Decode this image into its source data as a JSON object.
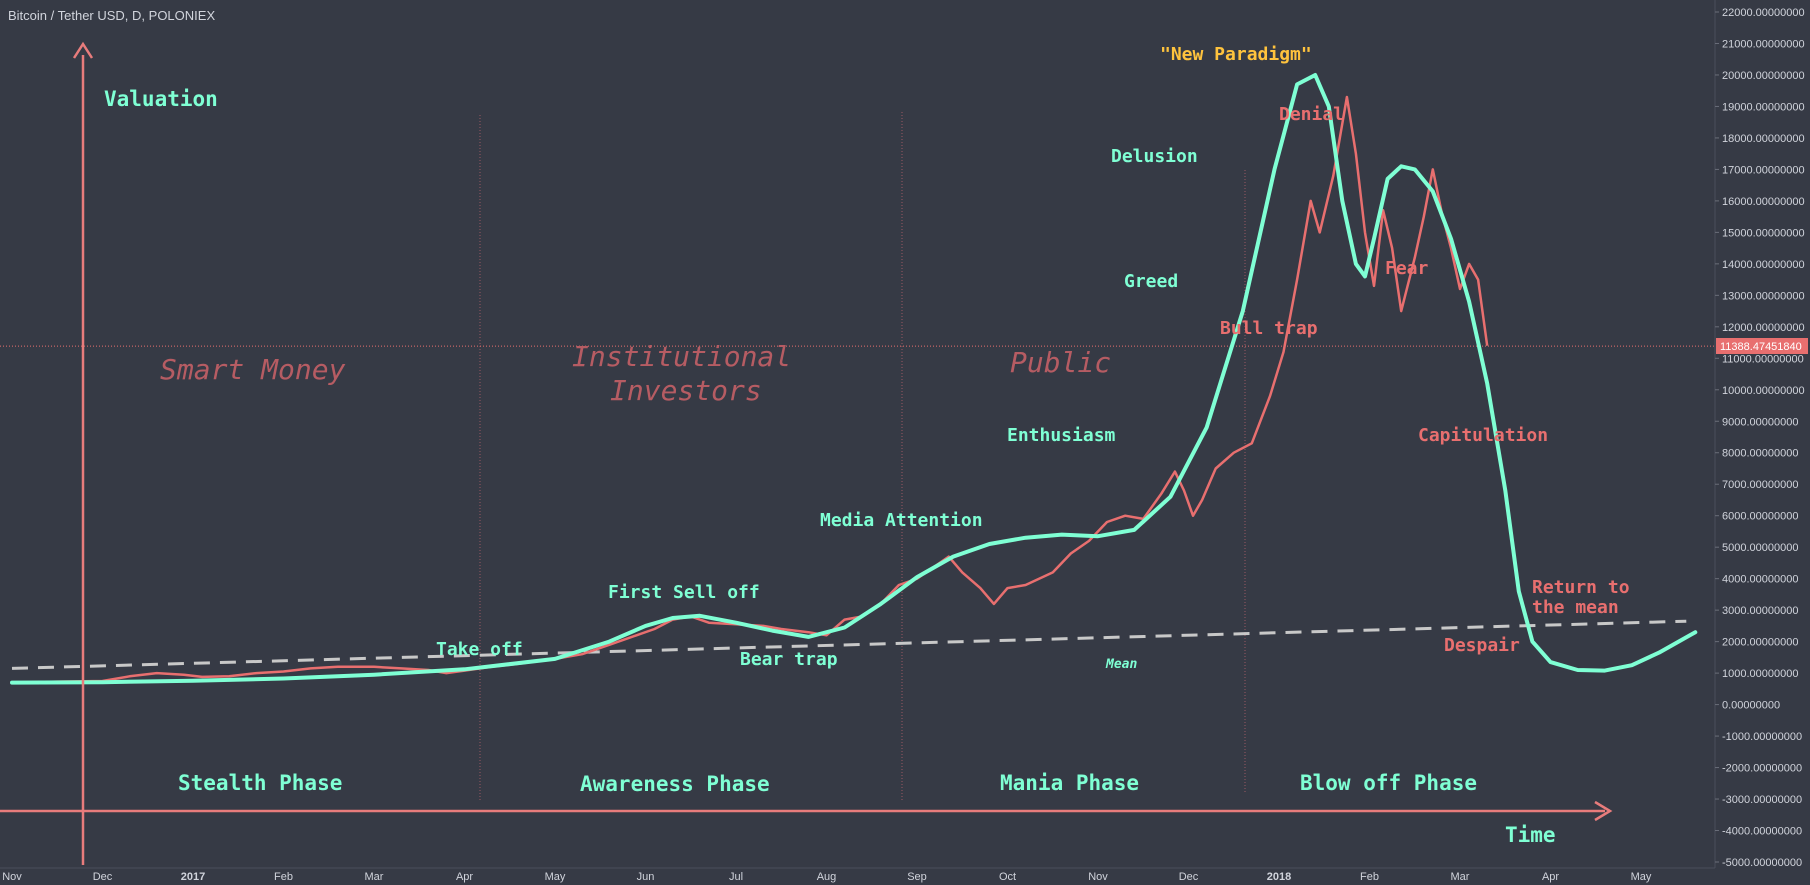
{
  "symbol_label": "Bitcoin / Tether USD, D, POLONIEX",
  "last_price": "11388.47451840",
  "colors": {
    "background": "#363a45",
    "price_line": "#e86f6f",
    "trend_curve": "#7fffd4",
    "mean_line": "#c8c8c8",
    "axis_arrows": "#e87c7c",
    "paradigm_label": "#ffc33d"
  },
  "chart_data": {
    "type": "line",
    "xlabel": "Time",
    "ylabel": "Valuation",
    "ylim": [
      -5000,
      22000
    ],
    "y_ticks": [
      "22000.00000000",
      "21000.00000000",
      "20000.00000000",
      "19000.00000000",
      "18000.00000000",
      "17000.00000000",
      "16000.00000000",
      "15000.00000000",
      "14000.00000000",
      "13000.00000000",
      "12000.00000000",
      "11000.00000000",
      "10000.00000000",
      "9000.00000000",
      "8000.00000000",
      "7000.00000000",
      "6000.00000000",
      "5000.00000000",
      "4000.00000000",
      "3000.00000000",
      "2000.00000000",
      "1000.00000000",
      "0.00000000",
      "-1000.00000000",
      "-2000.00000000",
      "-3000.00000000",
      "-4000.00000000",
      "-5000.00000000"
    ],
    "x_ticks": [
      {
        "label": "Nov",
        "month": 0
      },
      {
        "label": "Dec",
        "month": 1
      },
      {
        "label": "2017",
        "month": 2,
        "bold": true
      },
      {
        "label": "Feb",
        "month": 3
      },
      {
        "label": "Mar",
        "month": 4
      },
      {
        "label": "Apr",
        "month": 5
      },
      {
        "label": "May",
        "month": 6
      },
      {
        "label": "Jun",
        "month": 7
      },
      {
        "label": "Jul",
        "month": 8
      },
      {
        "label": "Aug",
        "month": 9
      },
      {
        "label": "Sep",
        "month": 10
      },
      {
        "label": "Oct",
        "month": 11
      },
      {
        "label": "Nov",
        "month": 12
      },
      {
        "label": "Dec",
        "month": 13
      },
      {
        "label": "2018",
        "month": 14,
        "bold": true
      },
      {
        "label": "Feb",
        "month": 15
      },
      {
        "label": "Mar",
        "month": 16
      },
      {
        "label": "Apr",
        "month": 17
      },
      {
        "label": "May",
        "month": 18
      }
    ],
    "series": [
      {
        "key": "price",
        "values": [
          [
            0,
            700
          ],
          [
            0.5,
            730
          ],
          [
            1,
            750
          ],
          [
            1.3,
            900
          ],
          [
            1.6,
            1000
          ],
          [
            1.9,
            950
          ],
          [
            2.1,
            880
          ],
          [
            2.4,
            900
          ],
          [
            2.7,
            1000
          ],
          [
            3,
            1050
          ],
          [
            3.3,
            1150
          ],
          [
            3.6,
            1200
          ],
          [
            4,
            1200
          ],
          [
            4.3,
            1150
          ],
          [
            4.6,
            1100
          ],
          [
            4.8,
            1000
          ],
          [
            5,
            1080
          ],
          [
            5.3,
            1200
          ],
          [
            5.6,
            1300
          ],
          [
            6,
            1450
          ],
          [
            6.3,
            1600
          ],
          [
            6.6,
            1900
          ],
          [
            6.9,
            2200
          ],
          [
            7.1,
            2400
          ],
          [
            7.3,
            2700
          ],
          [
            7.5,
            2800
          ],
          [
            7.7,
            2600
          ],
          [
            8,
            2550
          ],
          [
            8.3,
            2500
          ],
          [
            8.5,
            2400
          ],
          [
            8.8,
            2300
          ],
          [
            9,
            2200
          ],
          [
            9.2,
            2700
          ],
          [
            9.4,
            2800
          ],
          [
            9.6,
            3200
          ],
          [
            9.8,
            3800
          ],
          [
            10,
            4000
          ],
          [
            10.2,
            4400
          ],
          [
            10.35,
            4700
          ],
          [
            10.5,
            4200
          ],
          [
            10.7,
            3700
          ],
          [
            10.85,
            3200
          ],
          [
            11,
            3700
          ],
          [
            11.2,
            3800
          ],
          [
            11.5,
            4200
          ],
          [
            11.7,
            4800
          ],
          [
            11.9,
            5200
          ],
          [
            12.1,
            5800
          ],
          [
            12.3,
            6000
          ],
          [
            12.5,
            5900
          ],
          [
            12.7,
            6700
          ],
          [
            12.85,
            7400
          ],
          [
            12.95,
            6800
          ],
          [
            13.05,
            6000
          ],
          [
            13.15,
            6500
          ],
          [
            13.3,
            7500
          ],
          [
            13.5,
            8000
          ],
          [
            13.7,
            8300
          ],
          [
            13.9,
            9800
          ],
          [
            14.05,
            11200
          ],
          [
            14.2,
            13500
          ],
          [
            14.35,
            16000
          ],
          [
            14.45,
            15000
          ],
          [
            14.6,
            16800
          ],
          [
            14.75,
            19300
          ],
          [
            14.85,
            17500
          ],
          [
            14.95,
            15000
          ],
          [
            15.05,
            13300
          ],
          [
            15.15,
            15700
          ],
          [
            15.25,
            14500
          ],
          [
            15.35,
            12500
          ],
          [
            15.5,
            14200
          ],
          [
            15.6,
            15500
          ],
          [
            15.7,
            17000
          ],
          [
            15.8,
            15600
          ],
          [
            15.9,
            14500
          ],
          [
            16,
            13200
          ],
          [
            16.1,
            14000
          ],
          [
            16.2,
            13500
          ],
          [
            16.3,
            11400
          ]
        ]
      },
      {
        "key": "trend",
        "values": [
          [
            0,
            700
          ],
          [
            1,
            710
          ],
          [
            2,
            760
          ],
          [
            3,
            830
          ],
          [
            4,
            950
          ],
          [
            5,
            1120
          ],
          [
            6,
            1450
          ],
          [
            6.6,
            2000
          ],
          [
            7,
            2500
          ],
          [
            7.3,
            2750
          ],
          [
            7.6,
            2820
          ],
          [
            8,
            2600
          ],
          [
            8.4,
            2350
          ],
          [
            8.8,
            2150
          ],
          [
            9.2,
            2450
          ],
          [
            9.6,
            3200
          ],
          [
            10,
            4050
          ],
          [
            10.4,
            4700
          ],
          [
            10.8,
            5100
          ],
          [
            11.2,
            5300
          ],
          [
            11.6,
            5400
          ],
          [
            12,
            5350
          ],
          [
            12.4,
            5550
          ],
          [
            12.8,
            6600
          ],
          [
            13.2,
            8800
          ],
          [
            13.6,
            12500
          ],
          [
            13.95,
            17000
          ],
          [
            14.2,
            19700
          ],
          [
            14.4,
            20000
          ],
          [
            14.55,
            19000
          ],
          [
            14.7,
            16000
          ],
          [
            14.85,
            14000
          ],
          [
            14.95,
            13600
          ],
          [
            15.05,
            14800
          ],
          [
            15.2,
            16700
          ],
          [
            15.35,
            17100
          ],
          [
            15.5,
            17000
          ],
          [
            15.7,
            16300
          ],
          [
            15.9,
            14800
          ],
          [
            16.1,
            12800
          ],
          [
            16.3,
            10200
          ],
          [
            16.5,
            6800
          ],
          [
            16.65,
            3600
          ],
          [
            16.8,
            2000
          ],
          [
            17,
            1350
          ],
          [
            17.3,
            1100
          ],
          [
            17.6,
            1080
          ],
          [
            17.9,
            1250
          ],
          [
            18.2,
            1650
          ],
          [
            18.6,
            2300
          ]
        ]
      },
      {
        "key": "mean",
        "values": [
          [
            0,
            1150
          ],
          [
            18.5,
            2650
          ]
        ]
      }
    ],
    "annotations": {
      "valuation": "Valuation",
      "time": "Time",
      "new_paradigm": "\"New Paradigm\"",
      "denial": "Denial",
      "delusion": "Delusion",
      "greed": "Greed",
      "fear": "Fear",
      "bull_trap": "Bull trap",
      "smart_money": "Smart Money",
      "institutional_1": "Institutional",
      "institutional_2": "Investors",
      "public": "Public",
      "enthusiasm": "Enthusiasm",
      "capitulation": "Capitulation",
      "media_attention": "Media Attention",
      "first_sell_off": "First Sell off",
      "take_off": "Take off",
      "bear_trap": "Bear trap",
      "return_1": "Return to",
      "return_2": "the mean",
      "despair": "Despair",
      "mean": "Mean",
      "stealth_phase": "Stealth Phase",
      "awareness_phase": "Awareness Phase",
      "mania_phase": "Mania Phase",
      "blow_off_phase": "Blow off Phase"
    }
  }
}
